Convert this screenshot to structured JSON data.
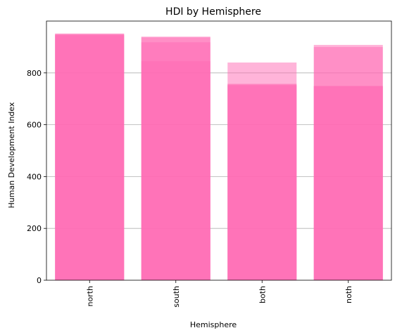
{
  "chart_data": {
    "type": "bar",
    "title": "HDI by Hemisphere",
    "xlabel": "Hemisphere",
    "ylabel": "Human Development Index",
    "categories": [
      "north",
      "south",
      "both",
      "noth"
    ],
    "bar_layers": [
      [
        945,
        937,
        840,
        748
      ],
      [
        952,
        918,
        758,
        908
      ],
      [
        948,
        940,
        752,
        900
      ],
      [
        950,
        845,
        755,
        750
      ]
    ],
    "ylim": [
      0,
      1000
    ],
    "yticks": [
      0,
      200,
      400,
      600,
      800
    ],
    "grid": "y",
    "bar_color": "#ff69b4",
    "legend": "none"
  }
}
